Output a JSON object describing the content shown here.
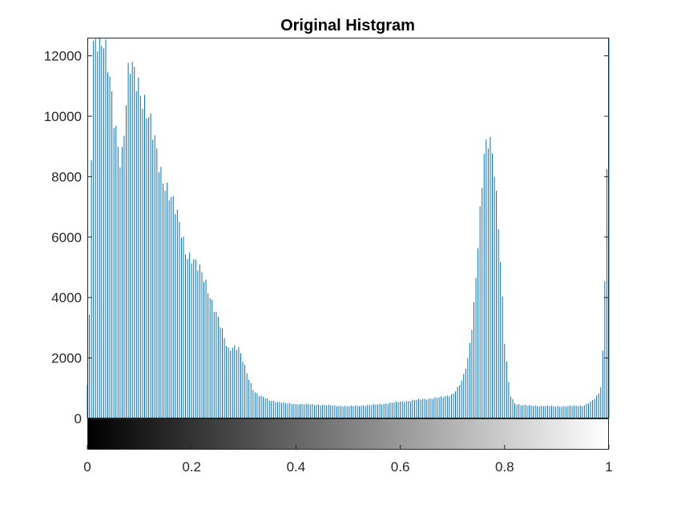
{
  "chart_data": {
    "type": "bar",
    "title": "Original Histgram",
    "xlabel": "",
    "ylabel": "",
    "xlim": [
      0,
      1
    ],
    "ylim": [
      0,
      12600
    ],
    "xticks": [
      "0",
      "0.2",
      "0.4",
      "0.6",
      "0.8",
      "1"
    ],
    "xtick_values": [
      0,
      0.2,
      0.4,
      0.6,
      0.8,
      1
    ],
    "yticks": [
      "0",
      "2000",
      "4000",
      "6000",
      "8000",
      "10000",
      "12000"
    ],
    "ytick_values": [
      0,
      2000,
      4000,
      6000,
      8000,
      10000,
      12000
    ],
    "grid": false,
    "colorbar": "grayscale, black to white",
    "bar_color": "#0072BD",
    "profile": {
      "x": [
        0,
        0.003,
        0.008,
        0.012,
        0.02,
        0.03,
        0.04,
        0.05,
        0.06,
        0.065,
        0.07,
        0.08,
        0.085,
        0.09,
        0.1,
        0.11,
        0.12,
        0.13,
        0.14,
        0.15,
        0.16,
        0.17,
        0.18,
        0.19,
        0.2,
        0.21,
        0.22,
        0.23,
        0.24,
        0.25,
        0.26,
        0.27,
        0.28,
        0.29,
        0.3,
        0.31,
        0.32,
        0.33,
        0.35,
        0.38,
        0.4,
        0.45,
        0.5,
        0.55,
        0.6,
        0.65,
        0.68,
        0.7,
        0.71,
        0.72,
        0.73,
        0.74,
        0.75,
        0.76,
        0.77,
        0.775,
        0.78,
        0.79,
        0.8,
        0.81,
        0.82,
        0.83,
        0.85,
        0.9,
        0.95,
        0.96,
        0.97,
        0.98,
        0.985,
        0.99,
        0.995,
        1.0
      ],
      "y": [
        1100,
        2000,
        9000,
        12500,
        12800,
        12600,
        11500,
        10000,
        9000,
        8500,
        9500,
        11600,
        11500,
        11300,
        11000,
        10500,
        9800,
        9000,
        8200,
        7800,
        7300,
        6800,
        6200,
        5500,
        5300,
        5000,
        4800,
        4400,
        3800,
        3300,
        2800,
        2300,
        2400,
        2300,
        1800,
        1300,
        900,
        750,
        600,
        500,
        480,
        450,
        400,
        450,
        550,
        650,
        700,
        800,
        1000,
        1300,
        2000,
        3500,
        6000,
        8500,
        9300,
        9000,
        8500,
        6000,
        2500,
        800,
        500,
        450,
        420,
        400,
        420,
        500,
        600,
        800,
        1100,
        2800,
        7300,
        12600
      ]
    }
  }
}
